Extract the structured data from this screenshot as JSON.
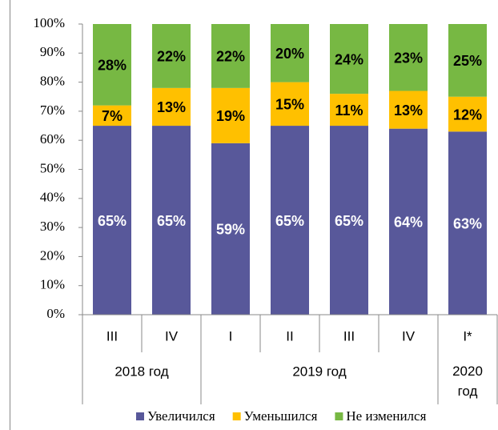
{
  "chart_data": {
    "type": "stacked_bar",
    "groups": [
      {
        "label": "2018 год",
        "categories": [
          "III",
          "IV"
        ]
      },
      {
        "label": "2019 год",
        "categories": [
          "I",
          "II",
          "III",
          "IV"
        ]
      },
      {
        "label": "2020 год",
        "categories": [
          "I*"
        ]
      }
    ],
    "series": [
      {
        "name": "Увеличился",
        "color": "#58589a",
        "label_color": "#ffffff",
        "values": [
          65,
          65,
          59,
          65,
          65,
          64,
          63
        ],
        "value_labels": [
          "65%",
          "65%",
          "59%",
          "65%",
          "65%",
          "64%",
          "63%"
        ]
      },
      {
        "name": "Уменьшился",
        "color": "#ffc000",
        "label_color": "#000000",
        "values": [
          7,
          13,
          19,
          15,
          11,
          13,
          12
        ],
        "value_labels": [
          "7%",
          "13%",
          "19%",
          "15%",
          "11%",
          "13%",
          "12%"
        ]
      },
      {
        "name": "Не изменился",
        "color": "#77b843",
        "label_color": "#000000",
        "values": [
          28,
          22,
          22,
          20,
          24,
          23,
          25
        ],
        "value_labels": [
          "28%",
          "22%",
          "22%",
          "20%",
          "24%",
          "23%",
          "25%"
        ]
      }
    ],
    "ylim": [
      0,
      100
    ],
    "yticks": [
      {
        "value": 0,
        "label": "0%"
      },
      {
        "value": 10,
        "label": "10%"
      },
      {
        "value": 20,
        "label": "20%"
      },
      {
        "value": 30,
        "label": "30%"
      },
      {
        "value": 40,
        "label": "40%"
      },
      {
        "value": 50,
        "label": "50%"
      },
      {
        "value": 60,
        "label": "60%"
      },
      {
        "value": 70,
        "label": "70%"
      },
      {
        "value": 80,
        "label": "80%"
      },
      {
        "value": 90,
        "label": "90%"
      },
      {
        "value": 100,
        "label": "100%"
      }
    ],
    "legend": "bottom"
  }
}
